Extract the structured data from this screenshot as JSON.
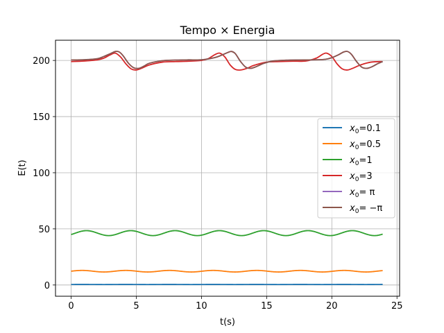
{
  "chart_data": {
    "type": "line",
    "title": "Tempo × Energia",
    "xlabel": "t(s)",
    "ylabel": "E(t)",
    "xlim": [
      -1.2,
      25.2
    ],
    "ylim": [
      -10,
      218
    ],
    "xticks": [
      0,
      5,
      10,
      15,
      20,
      25
    ],
    "yticks": [
      0,
      50,
      100,
      150,
      200
    ],
    "grid": true,
    "legend_position": "center-right",
    "t_end": 23.9,
    "series": [
      {
        "name": "x0=0.1",
        "legend_sub": "0",
        "legend_rest": "=0.1",
        "color": "#1f77b4",
        "model": {
          "type": "sine",
          "base": 0.5,
          "amp": 0.05,
          "period": 3.35,
          "phase": 0
        }
      },
      {
        "name": "x0=0.5",
        "legend_sub": "0",
        "legend_rest": "=0.5",
        "color": "#ff7f0e",
        "model": {
          "type": "sine",
          "base": 12.3,
          "amp": 0.7,
          "period": 3.35,
          "phase": 0.0
        }
      },
      {
        "name": "x0=1",
        "legend_sub": "0",
        "legend_rest": "=1",
        "color": "#2ca02c",
        "model": {
          "type": "sine",
          "base": 46.2,
          "amp": 2.2,
          "period": 3.4,
          "phase": -0.6
        }
      },
      {
        "name": "x0=3",
        "legend_sub": "0",
        "legend_rest": "=3",
        "color": "#d62728",
        "points": [
          [
            0,
            199
          ],
          [
            1,
            199.5
          ],
          [
            2,
            200.5
          ],
          [
            2.5,
            202
          ],
          [
            3,
            205
          ],
          [
            3.4,
            206.5
          ],
          [
            3.8,
            203
          ],
          [
            4.2,
            197
          ],
          [
            4.6,
            192.5
          ],
          [
            5,
            191.5
          ],
          [
            5.4,
            193
          ],
          [
            6,
            196
          ],
          [
            7,
            198.5
          ],
          [
            8,
            199
          ],
          [
            9,
            199.3
          ],
          [
            10,
            200
          ],
          [
            10.5,
            201.5
          ],
          [
            11,
            205
          ],
          [
            11.4,
            206.5
          ],
          [
            11.8,
            203
          ],
          [
            12.2,
            196
          ],
          [
            12.6,
            192
          ],
          [
            13,
            191.5
          ],
          [
            13.5,
            193
          ],
          [
            14,
            195.5
          ],
          [
            15,
            198.5
          ],
          [
            16,
            199
          ],
          [
            17,
            199.3
          ],
          [
            18,
            199.5
          ],
          [
            18.8,
            202
          ],
          [
            19.3,
            205.5
          ],
          [
            19.6,
            206.5
          ],
          [
            20,
            203.5
          ],
          [
            20.4,
            197
          ],
          [
            20.8,
            192.5
          ],
          [
            21.2,
            191.5
          ],
          [
            21.6,
            193
          ],
          [
            22.2,
            196
          ],
          [
            23,
            198.5
          ],
          [
            23.9,
            199
          ]
        ]
      },
      {
        "name": "x0=π",
        "legend_sub": "0",
        "legend_rest": "= π",
        "color": "#9467bd",
        "points": [
          [
            0,
            200.4
          ],
          [
            1,
            200.6
          ],
          [
            2,
            201.5
          ],
          [
            2.5,
            203.5
          ],
          [
            3,
            206
          ],
          [
            3.4,
            208
          ],
          [
            3.7,
            207.5
          ],
          [
            4,
            204
          ],
          [
            4.4,
            197.5
          ],
          [
            4.8,
            193.5
          ],
          [
            5.2,
            193
          ],
          [
            5.6,
            195
          ],
          [
            6,
            197.5
          ],
          [
            7,
            199.8
          ],
          [
            8,
            200.3
          ],
          [
            9,
            200.5
          ],
          [
            10,
            200.6
          ],
          [
            11,
            202.5
          ],
          [
            11.5,
            204.5
          ],
          [
            12,
            207
          ],
          [
            12.3,
            208
          ],
          [
            12.6,
            206
          ],
          [
            13,
            199
          ],
          [
            13.4,
            194
          ],
          [
            13.8,
            193
          ],
          [
            14.2,
            194.5
          ],
          [
            14.8,
            197.5
          ],
          [
            15.5,
            199.5
          ],
          [
            16.5,
            200.2
          ],
          [
            17.5,
            200.4
          ],
          [
            18.5,
            200.5
          ],
          [
            19.5,
            201
          ],
          [
            20,
            202.5
          ],
          [
            20.5,
            205
          ],
          [
            20.9,
            207.5
          ],
          [
            21.2,
            208
          ],
          [
            21.5,
            205.5
          ],
          [
            21.9,
            199
          ],
          [
            22.3,
            194
          ],
          [
            22.7,
            193
          ],
          [
            23.1,
            194.5
          ],
          [
            23.5,
            197
          ],
          [
            23.9,
            199
          ]
        ]
      },
      {
        "name": "x0=-π",
        "legend_sub": "0",
        "legend_rest": "= −π",
        "color": "#8c564b",
        "points": [
          [
            0,
            200.4
          ],
          [
            1,
            200.6
          ],
          [
            2,
            201.5
          ],
          [
            2.5,
            203.5
          ],
          [
            3,
            206
          ],
          [
            3.4,
            208
          ],
          [
            3.7,
            207.5
          ],
          [
            4,
            204
          ],
          [
            4.4,
            197.5
          ],
          [
            4.8,
            193.5
          ],
          [
            5.2,
            193
          ],
          [
            5.6,
            195
          ],
          [
            6,
            197.5
          ],
          [
            7,
            199.8
          ],
          [
            8,
            200.3
          ],
          [
            9,
            200.5
          ],
          [
            10,
            200.6
          ],
          [
            11,
            202.5
          ],
          [
            11.5,
            204.5
          ],
          [
            12,
            207
          ],
          [
            12.3,
            208
          ],
          [
            12.6,
            206
          ],
          [
            13,
            199
          ],
          [
            13.4,
            194
          ],
          [
            13.8,
            193
          ],
          [
            14.2,
            194.5
          ],
          [
            14.8,
            197.5
          ],
          [
            15.5,
            199.5
          ],
          [
            16.5,
            200.2
          ],
          [
            17.5,
            200.4
          ],
          [
            18.5,
            200.5
          ],
          [
            19.5,
            201
          ],
          [
            20,
            202.5
          ],
          [
            20.5,
            205
          ],
          [
            20.9,
            207.5
          ],
          [
            21.2,
            208
          ],
          [
            21.5,
            205.5
          ],
          [
            21.9,
            199
          ],
          [
            22.3,
            194
          ],
          [
            22.7,
            193
          ],
          [
            23.1,
            194.5
          ],
          [
            23.5,
            197
          ],
          [
            23.9,
            199
          ]
        ]
      }
    ]
  }
}
